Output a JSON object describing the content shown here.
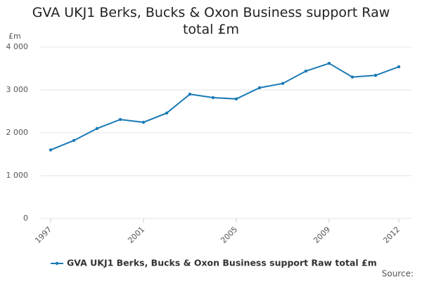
{
  "chart_data": {
    "type": "line",
    "title": "GVA UKJ1 Berks, Bucks & Oxon Business support Raw total £m",
    "y_label": "£m",
    "source": "Source:",
    "x": [
      1997,
      1998,
      1999,
      2000,
      2001,
      2002,
      2003,
      2004,
      2005,
      2006,
      2007,
      2008,
      2009,
      2010,
      2011,
      2012
    ],
    "series": [
      {
        "name": "GVA UKJ1 Berks, Bucks & Oxon Business support Raw total £m",
        "color": "#1a7ab5",
        "values": [
          1600,
          1820,
          2100,
          2310,
          2245,
          2460,
          2900,
          2820,
          2790,
          3050,
          3150,
          3440,
          3620,
          3300,
          3340,
          3540
        ]
      }
    ],
    "xlim": [
      1997,
      2012
    ],
    "xticks": [
      1997,
      2001,
      2005,
      2009,
      2012
    ],
    "ylim": [
      0,
      4000
    ],
    "yticks": [
      0,
      {
        "value": 1000,
        "label": "1 000"
      },
      {
        "value": 2000,
        "label": "2 000"
      },
      {
        "value": 3000,
        "label": "3 000"
      },
      {
        "value": 4000,
        "label": "4 000"
      }
    ],
    "grid": true
  }
}
